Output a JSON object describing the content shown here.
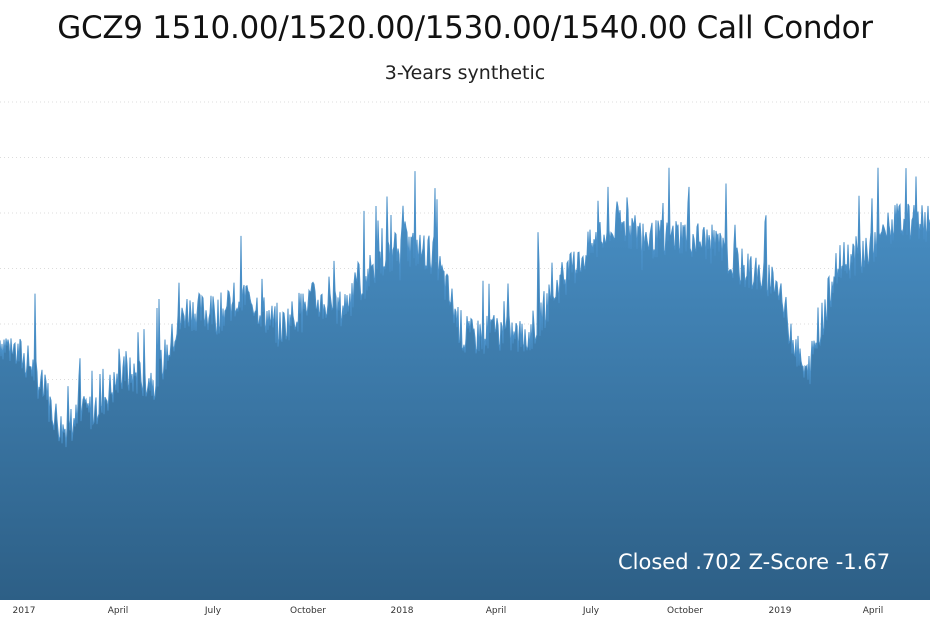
{
  "chart_data": {
    "type": "area",
    "title": "GCZ9 1510.00/1520.00/1530.00/1540.00 Call Condor",
    "subtitle": "3-Years synthetic",
    "status_text": "Closed .702 Z-Score -1.67",
    "x_tick_labels": [
      "2017",
      "April",
      "July",
      "October",
      "2018",
      "April",
      "July",
      "October",
      "2019",
      "April"
    ],
    "grid": true,
    "colors": {
      "area_top": "#4a92c9",
      "area_bottom": "#2d5f86",
      "line": "#4a90c8",
      "grid": "#dcdcdc"
    },
    "y_range": [
      0,
      1
    ],
    "x": [
      "2016-11",
      "2016-12",
      "2017-01",
      "2017-02",
      "2017-03",
      "2017-04",
      "2017-05",
      "2017-06",
      "2017-07",
      "2017-08",
      "2017-09",
      "2017-10",
      "2017-11",
      "2017-12",
      "2018-01",
      "2018-02",
      "2018-03",
      "2018-04",
      "2018-05",
      "2018-06",
      "2018-07",
      "2018-08",
      "2018-09",
      "2018-10",
      "2018-11",
      "2018-12",
      "2019-01",
      "2019-02",
      "2019-03",
      "2019-04",
      "2019-05"
    ],
    "values": [
      0.52,
      0.47,
      0.34,
      0.38,
      0.45,
      0.44,
      0.58,
      0.57,
      0.61,
      0.54,
      0.6,
      0.58,
      0.66,
      0.71,
      0.69,
      0.52,
      0.54,
      0.52,
      0.63,
      0.7,
      0.75,
      0.72,
      0.73,
      0.71,
      0.66,
      0.64,
      0.44,
      0.67,
      0.7,
      0.76,
      0.75
    ]
  }
}
